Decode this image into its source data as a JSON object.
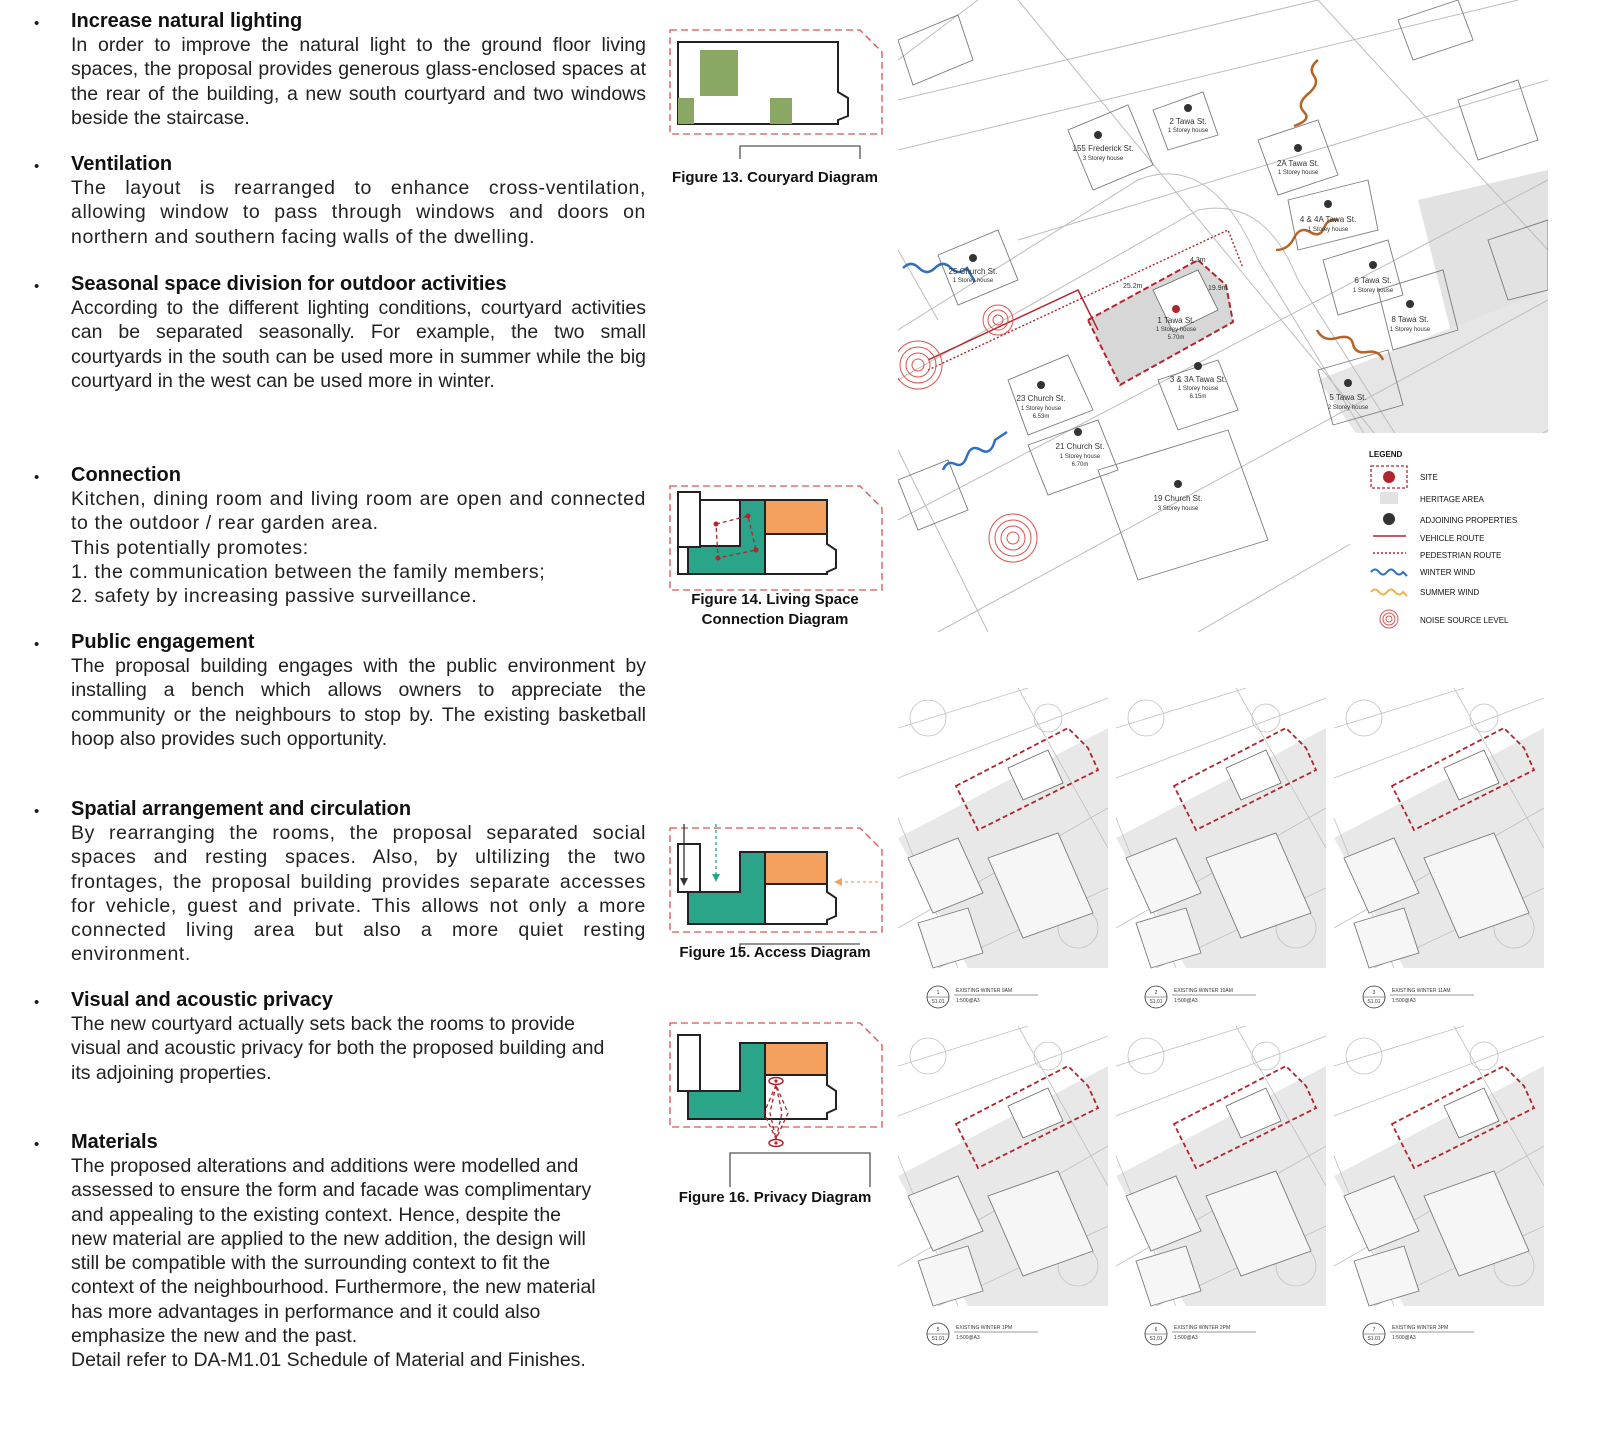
{
  "sections": [
    {
      "title": "Increase natural lighting",
      "paragraphs": [
        "In order to improve the natural light to the ground floor living spaces, the proposal provides generous glass-enclosed spaces at the rear of the building, a new south courtyard and two windows beside the staircase."
      ]
    },
    {
      "title": "Ventilation",
      "paragraphs": [
        "The layout is rearranged to enhance cross-ventilation, allowing window to pass through windows and doors on northern and southern facing walls of the dwelling."
      ]
    },
    {
      "title": "Seasonal space division for outdoor activities",
      "paragraphs": [
        "According to the different lighting conditions, courtyard activities can be separated seasonally. For example, the two small courtyards in the south can be used more in summer while the big courtyard in the west can be used more in winter."
      ]
    },
    {
      "title": "Connection",
      "paragraphs": [
        "Kitchen, dining room and living room are open and connected to the outdoor / rear garden area.",
        "This potentially promotes:",
        "1. the communication between the family members;",
        "2. safety by increasing passive surveillance."
      ]
    },
    {
      "title": "Public engagement",
      "paragraphs": [
        "The proposal building engages with the public environment by installing a bench which allows owners to appreciate the community or the neighbours to stop by. The existing basketball hoop also provides such opportunity."
      ]
    },
    {
      "title": "Spatial arrangement and circulation",
      "paragraphs": [
        "By rearranging the rooms, the proposal separated social spaces and resting spaces. Also, by ultilizing the two frontages, the proposal building provides separate accesses for vehicle, guest and private. This allows not only a more connected living area but also a more quiet resting environment."
      ]
    },
    {
      "title": "Visual and acoustic privacy",
      "paragraphs": [
        "The new courtyard actually sets back the rooms to provide visual and acoustic privacy for both the proposed building and its adjoining properties."
      ]
    },
    {
      "title": "Materials",
      "paragraphs": [
        "The proposed alterations and additions were modelled and assessed to ensure the form and facade was complimentary and appealing to the existing context. Hence, despite the new material are applied to the new addition, the design will still be compatible with the surrounding context to fit the context of the neighbourhood. Furthermore, the new material has more advantages in performance and it could also emphasize the new and the past.",
        "Detail refer to DA-M1.01 Schedule of Material and Finishes."
      ]
    }
  ],
  "figures": {
    "fig13": "Figure 13. Couryard Diagram",
    "fig14": "Figure 14.  Living Space Connection Diagram",
    "fig15": "Figure 15.  Access Diagram",
    "fig16": "Figure 16.  Privacy Diagram"
  },
  "map": {
    "properties": [
      {
        "name": "155 Frederick St.",
        "note": "3 Storey house"
      },
      {
        "name": "2 Tawa St.",
        "note": "1 Storey house"
      },
      {
        "name": "2A Tawa St.",
        "note": "1 Storey house"
      },
      {
        "name": "4 & 4A Tawa St.",
        "note": "1 Storey house"
      },
      {
        "name": "25 Church St.",
        "note": "1 Storey house"
      },
      {
        "name": "6 Tawa St.",
        "note": "1 Storey house"
      },
      {
        "name": "8 Tawa St.",
        "note": "1 Storey house"
      },
      {
        "name": "1 Tawa St.",
        "note": "1 Storey house",
        "extra": "5.70m"
      },
      {
        "name": "3 & 3A Tawa St.",
        "note": "1 Storey house",
        "extra": "6.15m"
      },
      {
        "name": "23 Church St.",
        "note": "1 Storey house",
        "extra": "6.53m"
      },
      {
        "name": "5 Tawa St.",
        "note": "2 Storey house"
      },
      {
        "name": "21 Church St.",
        "note": "1 Storey house",
        "extra": "6.70m"
      },
      {
        "name": "19 Church St.",
        "note": "3 Storey house"
      }
    ],
    "dimensions": [
      "25.2m",
      "4.3m",
      "19.9m"
    ],
    "legend": {
      "title": "LEGEND",
      "items": [
        "SITE",
        "HERITAGE AREA",
        "ADJOINING PROPERTIES",
        "VEHICLE ROUTE",
        "PEDESTRIAN ROUTE",
        "WINTER WIND",
        "SUMMER WIND",
        "NOISE SOURCE LEVEL"
      ]
    }
  },
  "shadow_studies": [
    {
      "num": "1",
      "sheet": "S1.01",
      "title": "EXISTING WINTER 9AM",
      "scale": "1:500@A3"
    },
    {
      "num": "2",
      "sheet": "S1.01",
      "title": "EXISTING WINTER 10AM",
      "scale": "1:500@A3"
    },
    {
      "num": "3",
      "sheet": "S1.01",
      "title": "EXISTING WINTER 11AM",
      "scale": "1:500@A3"
    },
    {
      "num": "5",
      "sheet": "S1.01",
      "title": "EXISTING WINTER 1PM",
      "scale": "1:500@A3"
    },
    {
      "num": "6",
      "sheet": "S1.01",
      "title": "EXISTING WINTER 2PM",
      "scale": "1:500@A3"
    },
    {
      "num": "7",
      "sheet": "S1.01",
      "title": "EXISTING WINTER 3PM",
      "scale": "1:500@A3"
    }
  ],
  "colors": {
    "courtyard_green": "#8aa764",
    "living_teal": "#2ba58a",
    "room_orange": "#f4a05e",
    "site_red": "#b1252d",
    "winter_wind": "#2f6fc0",
    "summer_wind_dark": "#9b4a14",
    "summer_wind_light": "#f2b24a",
    "heritage_grey": "#e2e2e2"
  }
}
